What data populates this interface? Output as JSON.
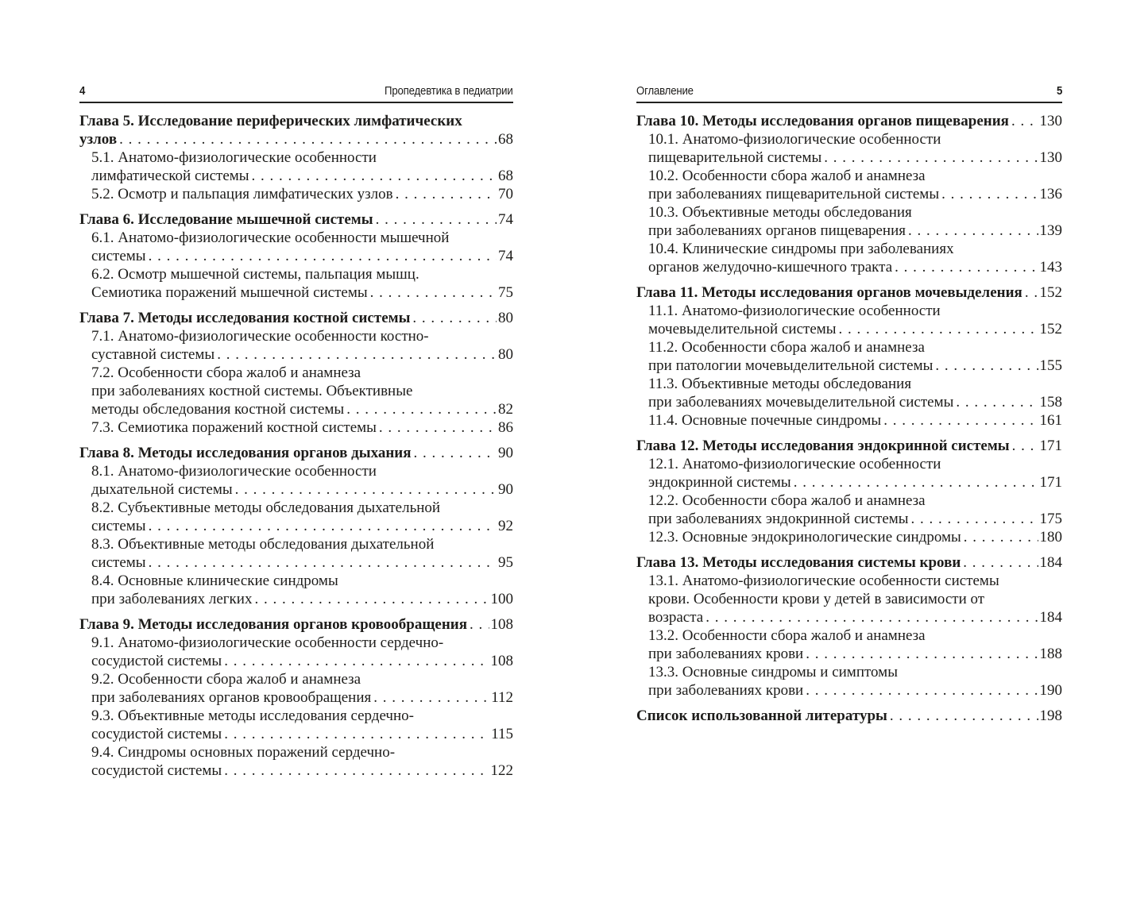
{
  "colors": {
    "background": "#ffffff",
    "text": "#1d1c1a",
    "header_rule": "#222220"
  },
  "pages": [
    {
      "side": "left",
      "header": {
        "page_number": "4",
        "running_title": "Пропедевтика в педиатрии"
      },
      "entries": [
        {
          "type": "chapter",
          "lines": [
            "Глава 5. Исследование периферических лимфатических",
            "узлов"
          ],
          "page": "68"
        },
        {
          "type": "section",
          "lines": [
            "5.1. Анатомо-физиологические особенности",
            "лимфатической системы"
          ],
          "page": "68"
        },
        {
          "type": "section",
          "lines": [
            "5.2. Осмотр и пальпация лимфатических узлов"
          ],
          "page": "70"
        },
        {
          "type": "chapter",
          "lines": [
            "Глава 6. Исследование мышечной системы"
          ],
          "page": "74"
        },
        {
          "type": "section",
          "lines": [
            "6.1. Анатомо-физиологические особенности мышечной",
            "системы"
          ],
          "page": "74"
        },
        {
          "type": "section",
          "lines": [
            "6.2. Осмотр мышечной системы, пальпация мышц.",
            "Семиотика поражений мышечной системы"
          ],
          "page": "75"
        },
        {
          "type": "chapter",
          "lines": [
            "Глава 7. Методы исследования костной системы"
          ],
          "page": "80"
        },
        {
          "type": "section",
          "lines": [
            "7.1. Анатомо-физиологические особенности костно-",
            "суставной системы"
          ],
          "page": "80"
        },
        {
          "type": "section",
          "lines": [
            "7.2. Особенности сбора жалоб и анамнеза",
            "при заболеваниях костной системы. Объективные",
            "методы обследования костной системы"
          ],
          "page": "82"
        },
        {
          "type": "section",
          "lines": [
            "7.3. Семиотика поражений костной системы"
          ],
          "page": "86"
        },
        {
          "type": "chapter",
          "lines": [
            "Глава 8. Методы исследования органов дыхания"
          ],
          "page": "90"
        },
        {
          "type": "section",
          "lines": [
            "8.1. Анатомо-физиологические особенности",
            "дыхательной системы"
          ],
          "page": "90"
        },
        {
          "type": "section",
          "lines": [
            "8.2. Субъективные методы обследования дыхательной",
            "системы"
          ],
          "page": "92"
        },
        {
          "type": "section",
          "lines": [
            "8.3. Объективные методы обследования дыхательной",
            "системы"
          ],
          "page": "95"
        },
        {
          "type": "section",
          "lines": [
            "8.4. Основные клинические синдромы",
            "при заболеваниях легких"
          ],
          "page": "100"
        },
        {
          "type": "chapter",
          "lines": [
            "Глава 9. Методы исследования органов кровообращения"
          ],
          "page": "108"
        },
        {
          "type": "section",
          "lines": [
            "9.1. Анатомо-физиологические особенности сердечно-",
            "сосудистой системы"
          ],
          "page": "108"
        },
        {
          "type": "section",
          "lines": [
            "9.2. Особенности сбора жалоб и анамнеза",
            "при заболеваниях органов кровообращения"
          ],
          "page": "112"
        },
        {
          "type": "section",
          "lines": [
            "9.3. Объективные методы исследования сердечно-",
            "сосудистой системы"
          ],
          "page": "115"
        },
        {
          "type": "section",
          "lines": [
            "9.4. Синдромы основных поражений сердечно-",
            "сосудистой системы"
          ],
          "page": "122"
        }
      ]
    },
    {
      "side": "right",
      "header": {
        "page_number": "5",
        "running_title": "Оглавление"
      },
      "entries": [
        {
          "type": "chapter",
          "lines": [
            "Глава 10. Методы исследования органов пищеварения"
          ],
          "page": "130"
        },
        {
          "type": "section",
          "lines": [
            "10.1. Анатомо-физиологические особенности",
            "пищеварительной системы"
          ],
          "page": "130"
        },
        {
          "type": "section",
          "lines": [
            "10.2. Особенности сбора жалоб и анамнеза",
            "при заболеваниях пищеварительной системы"
          ],
          "page": "136"
        },
        {
          "type": "section",
          "lines": [
            "10.3. Объективные методы обследования",
            "при заболеваниях органов пищеварения"
          ],
          "page": "139"
        },
        {
          "type": "section",
          "lines": [
            "10.4. Клинические синдромы при заболеваниях",
            "органов желудочно-кишечного тракта"
          ],
          "page": "143"
        },
        {
          "type": "chapter",
          "lines": [
            "Глава 11. Методы исследования органов мочевыделения"
          ],
          "page": "152"
        },
        {
          "type": "section",
          "lines": [
            "11.1. Анатомо-физиологические особенности",
            "мочевыделительной системы"
          ],
          "page": "152"
        },
        {
          "type": "section",
          "lines": [
            "11.2. Особенности сбора жалоб и анамнеза",
            "при патологии мочевыделительной системы"
          ],
          "page": "155"
        },
        {
          "type": "section",
          "lines": [
            "11.3. Объективные методы обследования",
            "при заболеваниях мочевыделительной системы"
          ],
          "page": "158"
        },
        {
          "type": "section",
          "lines": [
            "11.4. Основные почечные синдромы"
          ],
          "page": "161"
        },
        {
          "type": "chapter",
          "lines": [
            "Глава 12. Методы исследования эндокринной системы"
          ],
          "page": "171"
        },
        {
          "type": "section",
          "lines": [
            "12.1. Анатомо-физиологические особенности",
            "эндокринной системы"
          ],
          "page": "171"
        },
        {
          "type": "section",
          "lines": [
            "12.2. Особенности сбора жалоб и анамнеза",
            "при заболеваниях эндокринной системы"
          ],
          "page": "175"
        },
        {
          "type": "section",
          "lines": [
            "12.3. Основные эндокринологические синдромы"
          ],
          "page": "180"
        },
        {
          "type": "chapter",
          "lines": [
            "Глава 13. Методы исследования системы крови"
          ],
          "page": "184"
        },
        {
          "type": "section",
          "lines": [
            "13.1. Анатомо-физиологические особенности системы",
            "крови. Особенности крови у детей в зависимости от",
            "возраста"
          ],
          "page": "184"
        },
        {
          "type": "section",
          "lines": [
            "13.2. Особенности сбора жалоб и анамнеза",
            "при заболеваниях крови"
          ],
          "page": "188"
        },
        {
          "type": "section",
          "lines": [
            "13.3. Основные синдромы и симптомы",
            "при заболеваниях крови"
          ],
          "page": "190"
        },
        {
          "type": "chapter",
          "lines": [
            "Список использованной литературы"
          ],
          "page": "198"
        }
      ]
    }
  ]
}
